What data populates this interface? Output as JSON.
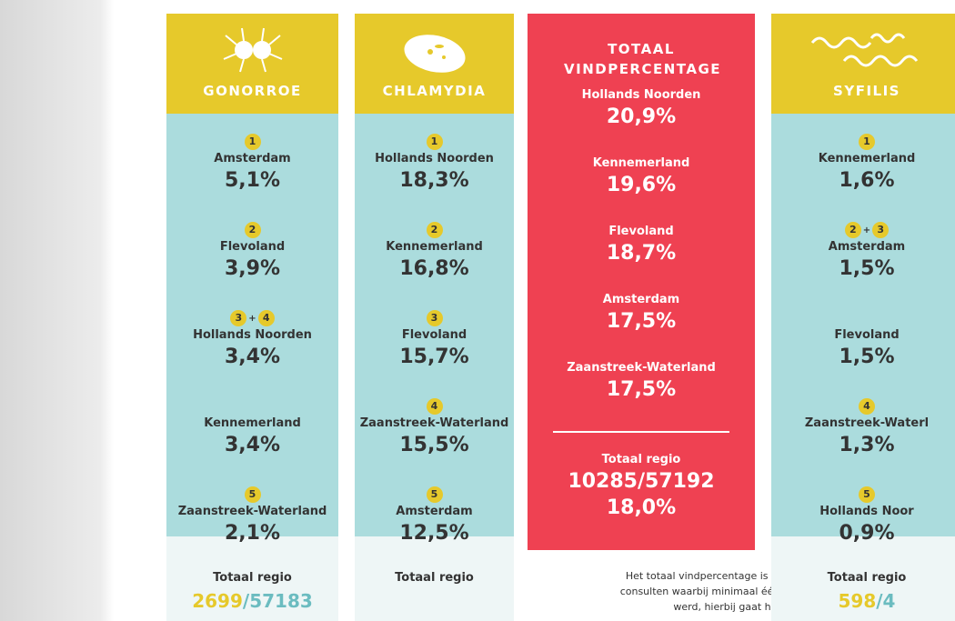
{
  "columns": [
    {
      "title": "GONORROE",
      "style": "yellow",
      "icon": "gonorroe",
      "entries": [
        {
          "ranks": [
            "1"
          ],
          "region": "Amsterdam",
          "value": "5,1%"
        },
        {
          "ranks": [
            "2"
          ],
          "region": "Flevoland",
          "value": "3,9%"
        },
        {
          "ranks": [
            "3",
            "+",
            "4"
          ],
          "region": "Hollands Noorden",
          "value": "3,4%"
        },
        {
          "ranks": [],
          "region": "Kennemerland",
          "value": "3,4%"
        },
        {
          "ranks": [
            "5"
          ],
          "region": "Zaanstreek-Waterland",
          "value": "2,1%"
        }
      ],
      "total": {
        "label": "Totaal regio",
        "parts": [
          "2699",
          "/57183"
        ]
      }
    },
    {
      "title": "CHLAMYDIA",
      "style": "yellow",
      "icon": "chlamydia",
      "entries": [
        {
          "ranks": [
            "1"
          ],
          "region": "Hollands Noorden",
          "value": "18,3%"
        },
        {
          "ranks": [
            "2"
          ],
          "region": "Kennemerland",
          "value": "16,8%"
        },
        {
          "ranks": [
            "3"
          ],
          "region": "Flevoland",
          "value": "15,7%"
        },
        {
          "ranks": [
            "4"
          ],
          "region": "Zaanstreek-Waterland",
          "value": "15,5%"
        },
        {
          "ranks": [
            "5"
          ],
          "region": "Amsterdam",
          "value": "12,5%"
        }
      ],
      "total": {
        "label": "Totaal regio",
        "parts": []
      }
    },
    {
      "title": "TOTAAL VINDPERCENTAGE",
      "style": "red",
      "icon": "",
      "entries": [
        {
          "ranks": [],
          "region": "Hollands Noorden",
          "value": "20,9%"
        },
        {
          "ranks": [],
          "region": "Kennemerland",
          "value": "19,6%"
        },
        {
          "ranks": [],
          "region": "Flevoland",
          "value": "18,7%"
        },
        {
          "ranks": [],
          "region": "Amsterdam",
          "value": "17,5%"
        },
        {
          "ranks": [],
          "region": "Zaanstreek-Waterland",
          "value": "17,5%"
        }
      ],
      "total": {
        "label": "Totaal regio",
        "lines": [
          "10285/57192",
          "18,0%"
        ]
      },
      "note": "Het totaal vindpercentage is het percentage consulten waarbij minimaal één soa gevonden werd, hierbij gaat het om"
    },
    {
      "title": "SYFILIS",
      "style": "yellow",
      "icon": "syfilis",
      "entries": [
        {
          "ranks": [
            "1"
          ],
          "region": "Kennemerland",
          "value": "1,6%"
        },
        {
          "ranks": [
            "2",
            "+",
            "3"
          ],
          "region": "Amsterdam",
          "value": "1,5%"
        },
        {
          "ranks": [],
          "region": "Flevoland",
          "value": "1,5%"
        },
        {
          "ranks": [
            "4"
          ],
          "region": "Zaanstreek-Waterl",
          "value": "1,3%"
        },
        {
          "ranks": [
            "5"
          ],
          "region": "Hollands Noor",
          "value": "0,9%"
        }
      ],
      "total": {
        "label": "Totaal regio",
        "parts": [
          "598",
          "/4"
        ]
      }
    }
  ]
}
